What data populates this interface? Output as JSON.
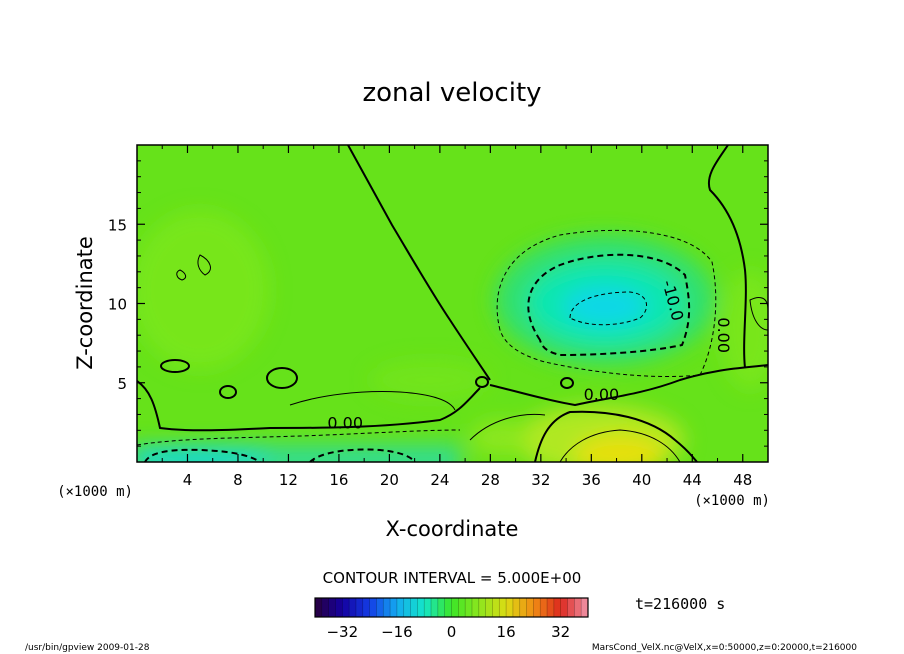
{
  "chart_data": {
    "type": "heatmap",
    "title": "zonal velocity",
    "xlabel": "X-coordinate",
    "ylabel": "Z-coordinate",
    "x_unit_left": "(×1000 m)",
    "x_unit_right": "(×1000 m)",
    "xlim": [
      0,
      50
    ],
    "ylim": [
      0,
      20
    ],
    "x_ticks": [
      "4",
      "8",
      "12",
      "16",
      "20",
      "24",
      "28",
      "32",
      "36",
      "40",
      "44",
      "48"
    ],
    "x_tick_values": [
      4,
      8,
      12,
      16,
      20,
      24,
      28,
      32,
      36,
      40,
      44,
      48
    ],
    "y_ticks": [
      "5",
      "10",
      "15"
    ],
    "y_tick_values": [
      5,
      10,
      15
    ],
    "contour_interval_text": "CONTOUR INTERVAL = 5.000E+00",
    "time_text": "t=216000 s",
    "contour_labels": [
      {
        "text": "0.00",
        "x": 16.5,
        "y": 2.5
      },
      {
        "text": "0.00",
        "x": 36.8,
        "y": 4.3
      },
      {
        "text": "-10.0",
        "x": 42.5,
        "y": 10.2
      },
      {
        "text": "0.00",
        "x": 46.5,
        "y": 8.0
      }
    ],
    "features": [
      {
        "kind": "min",
        "x": 37.0,
        "y": 10.0,
        "value": -14
      },
      {
        "kind": "max",
        "x": 38.0,
        "y": 0.5,
        "value": 14
      },
      {
        "kind": "min",
        "x": 4.0,
        "y": 0.3,
        "value": -10
      }
    ],
    "colorbar": {
      "min": -40,
      "max": 40,
      "ticks": [
        "-32",
        "-16",
        "0",
        "16",
        "32"
      ],
      "tick_values": [
        -32,
        -16,
        0,
        16,
        32
      ]
    }
  },
  "footer": {
    "left": "/usr/bin/gpview  2009-01-28",
    "right": "MarsCond_VelX.nc@VelX,x=0:50000,z=0:20000,t=216000"
  }
}
